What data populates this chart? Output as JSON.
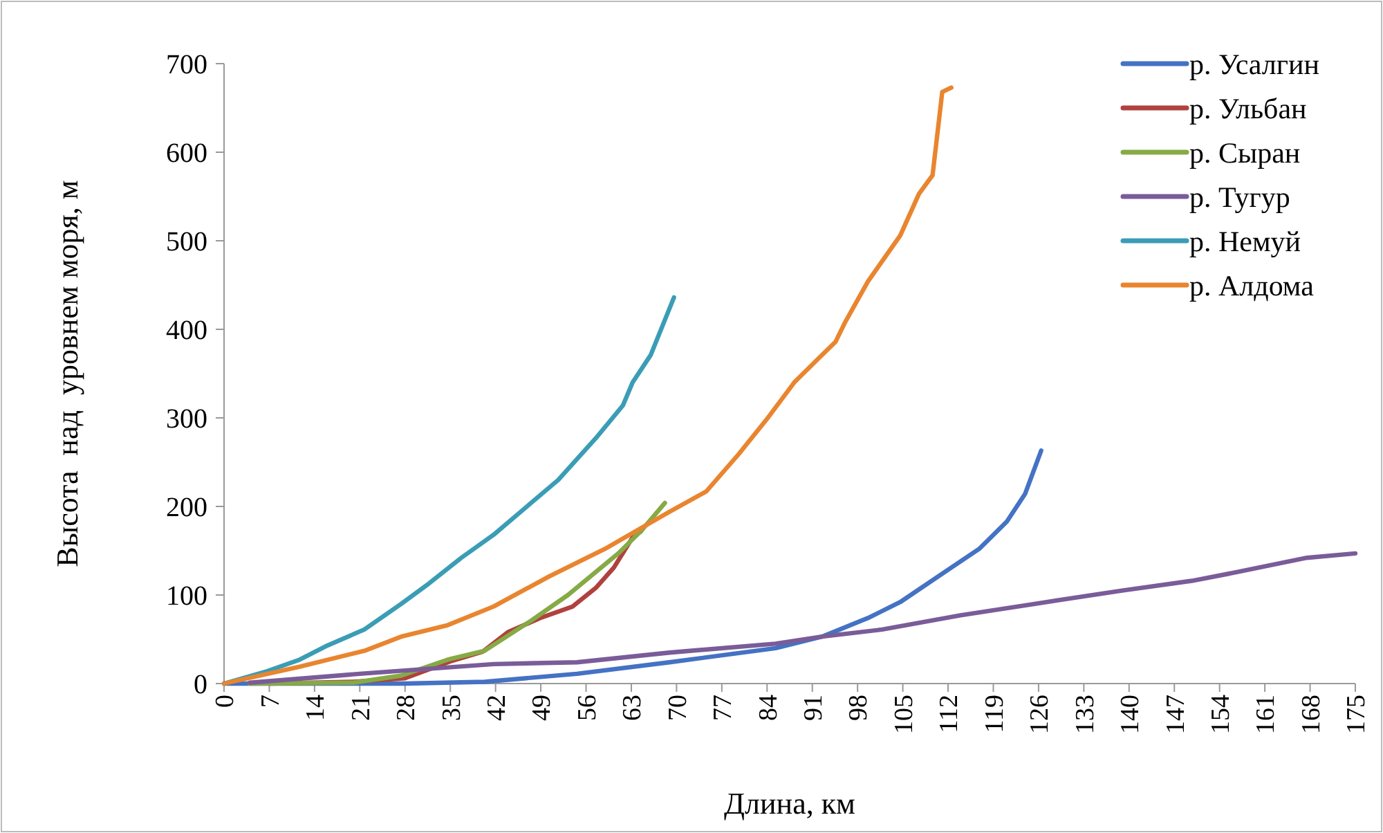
{
  "chart_data": {
    "type": "line",
    "xlabel": "Длина, км",
    "ylabel": "Высота  над  уровнем моря, м",
    "xlim": [
      0,
      175
    ],
    "ylim": [
      0,
      700
    ],
    "xticks": [
      0,
      7,
      14,
      21,
      28,
      35,
      42,
      49,
      56,
      63,
      70,
      77,
      84,
      91,
      98,
      105,
      112,
      119,
      126,
      133,
      140,
      147,
      154,
      161,
      168,
      175
    ],
    "yticks": [
      0,
      100,
      200,
      300,
      400,
      500,
      600,
      700
    ],
    "grid": false,
    "legend": "top right",
    "marker": "none",
    "line_style": "solid",
    "series": [
      {
        "name": "р. Усалгин",
        "color": "#4472c4",
        "x": [
          0,
          28,
          40.3,
          54.6,
          68.9,
          85.3,
          92.5,
          99.6,
          104.6,
          112.5,
          116.8,
          121.1,
          123.9,
          126.4
        ],
        "values": [
          0,
          0,
          2,
          11,
          24,
          40,
          53,
          74,
          92,
          131,
          152,
          183,
          214,
          263
        ]
      },
      {
        "name": "р. Ульбан",
        "color": "#b0413e",
        "x": [
          7,
          20,
          28,
          35,
          40,
          43.9,
          48.9,
          53.9,
          57.5,
          60.3,
          63.2,
          64.5
        ],
        "values": [
          0,
          2,
          6,
          25,
          36,
          58,
          74,
          87,
          108,
          131,
          165,
          172
        ]
      },
      {
        "name": "р. Сыран",
        "color": "#86aa45",
        "x": [
          4,
          20,
          27.4,
          34.6,
          40.3,
          47.5,
          53.2,
          57.5,
          61,
          64.6,
          68.2
        ],
        "values": [
          0,
          1,
          9,
          27,
          37,
          71,
          100,
          126,
          147,
          173,
          204
        ]
      },
      {
        "name": "р. Тугур",
        "color": "#7a5c99",
        "x": [
          4,
          21,
          41.7,
          54.6,
          68.9,
          85.3,
          92.5,
          101.8,
          113.9,
          125.4,
          138.9,
          149.7,
          156.8,
          167.5,
          175
        ],
        "values": [
          1,
          11,
          22,
          24,
          35,
          45,
          53,
          61,
          77,
          90,
          105,
          116,
          126,
          142,
          147
        ]
      },
      {
        "name": "р. Немуй",
        "color": "#3a9db5",
        "x": [
          0,
          6.7,
          11.7,
          16,
          21.7,
          27.4,
          31.7,
          36.7,
          41.7,
          47.5,
          51.7,
          57.5,
          61.7,
          63.2,
          66,
          69.6
        ],
        "values": [
          0,
          14,
          27,
          43,
          61,
          90,
          113,
          142,
          168,
          204,
          230,
          277,
          314,
          340,
          371,
          436
        ]
      },
      {
        "name": "р. Алдома",
        "color": "#e9852f",
        "x": [
          0,
          11.7,
          21.7,
          27.4,
          34.6,
          41.7,
          50.3,
          58.9,
          68.9,
          74.6,
          79.6,
          83.9,
          88.2,
          91.8,
          94.6,
          96,
          99.6,
          104.6,
          107.5,
          109.6,
          111.1,
          112.5
        ],
        "values": [
          0,
          19,
          37,
          53,
          66,
          87,
          121,
          152,
          194,
          217,
          259,
          298,
          340,
          366,
          386,
          407,
          454,
          506,
          553,
          574,
          668,
          673
        ]
      }
    ]
  }
}
